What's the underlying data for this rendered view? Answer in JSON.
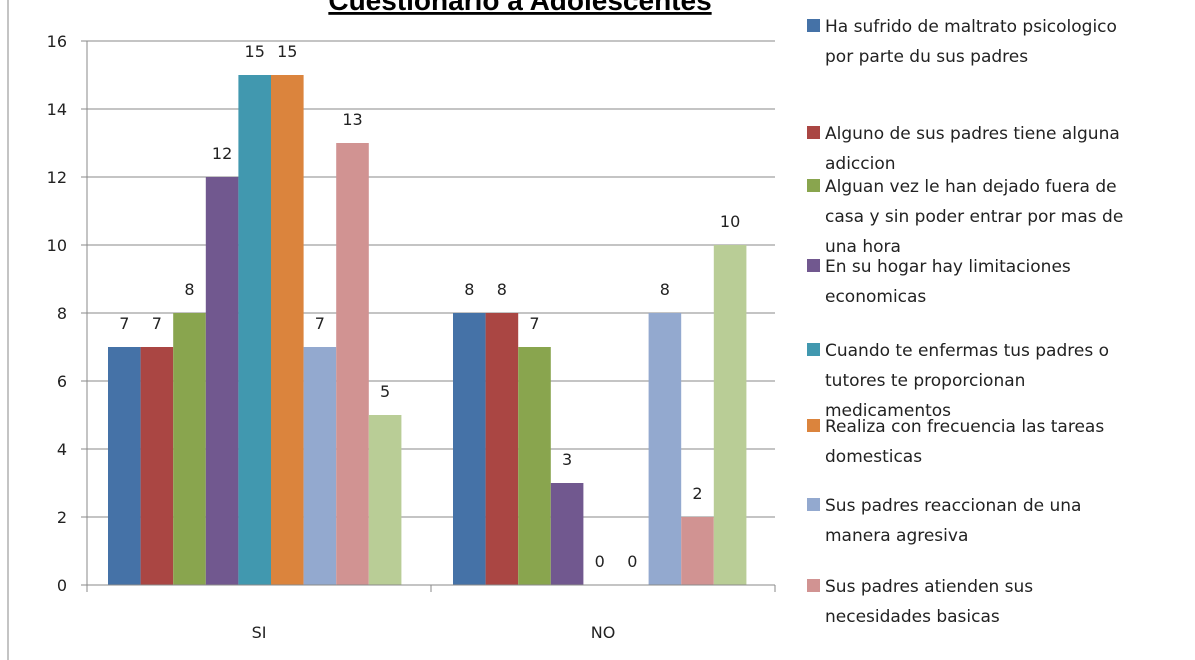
{
  "chart_data": {
    "type": "bar",
    "title": "Cuestionario a Adolescentes",
    "categories": [
      "SI",
      "NO"
    ],
    "ylim": [
      0,
      16
    ],
    "yticks": [
      0,
      2,
      4,
      6,
      8,
      10,
      12,
      14,
      16
    ],
    "grid": true,
    "legend_position": "right",
    "series": [
      {
        "name": "Ha sufrido de maltrato psicologico por parte du sus padres",
        "color": "#4572a7",
        "values": [
          7,
          8
        ]
      },
      {
        "name": "Alguno de sus padres tiene alguna adiccion",
        "color": "#aa4643",
        "values": [
          7,
          8
        ]
      },
      {
        "name": "Alguan vez le han dejado fuera de casa y sin poder entrar por mas de una hora",
        "color": "#89a54e",
        "values": [
          8,
          7
        ]
      },
      {
        "name": "En su hogar hay limitaciones economicas",
        "color": "#71588f",
        "values": [
          12,
          3
        ]
      },
      {
        "name": "Cuando te enfermas tus padres o tutores te proporcionan medicamentos",
        "color": "#4198af",
        "values": [
          15,
          0
        ]
      },
      {
        "name": "Realiza con frecuencia las tareas domesticas",
        "color": "#db843d",
        "values": [
          15,
          0
        ]
      },
      {
        "name": "Sus padres reaccionan de una manera agresiva",
        "color": "#93a9cf",
        "values": [
          7,
          8
        ]
      },
      {
        "name": "Sus padres atienden sus necesidades basicas",
        "color": "#d19392",
        "values": [
          13,
          2
        ]
      },
      {
        "name": "",
        "color": "#b9cd96",
        "values": [
          5,
          10
        ]
      }
    ],
    "legend_lines": [
      [
        "Ha sufrido de maltrato psicologico",
        "por parte du sus padres"
      ],
      [
        "Alguno de sus padres tiene alguna",
        "adiccion"
      ],
      [
        "Alguan vez le han dejado fuera de",
        "casa y sin poder entrar por mas de",
        "una hora"
      ],
      [
        "En su hogar hay limitaciones",
        "economicas"
      ],
      [
        "Cuando te enfermas tus padres o",
        "tutores te proporcionan",
        "medicamentos"
      ],
      [
        "Realiza con frecuencia las tareas",
        "domesticas"
      ],
      [
        "Sus padres reaccionan de una",
        "manera agresiva"
      ],
      [
        "Sus padres atienden sus",
        "necesidades basicas"
      ]
    ]
  }
}
